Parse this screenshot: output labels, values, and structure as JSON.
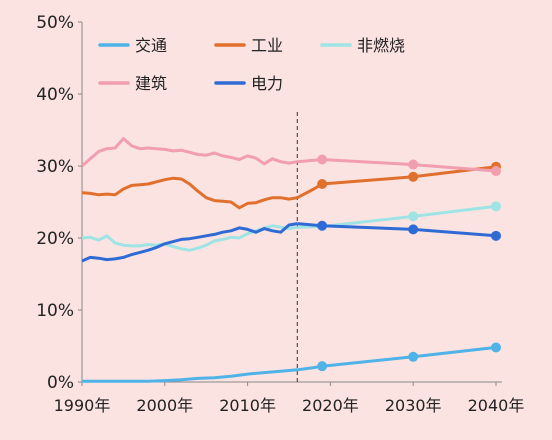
{
  "chart_data": {
    "type": "line",
    "title": "",
    "xlabel": "",
    "ylabel": "",
    "xlim": [
      1990,
      2040
    ],
    "ylim": [
      0,
      50
    ],
    "y_ticks": [
      0,
      10,
      20,
      30,
      40,
      50
    ],
    "y_tick_labels": [
      "0%",
      "10%",
      "20%",
      "30%",
      "40%",
      "50%"
    ],
    "x_ticks": [
      1990,
      2000,
      2010,
      2020,
      2030,
      2040
    ],
    "x_tick_labels": [
      "1990年",
      "2000年",
      "2010年",
      "2020年",
      "2030年",
      "2040年"
    ],
    "divider_x": 2016,
    "grid": false,
    "legend_position": "top",
    "series": [
      {
        "name": "交通",
        "color": "#4fb3e8",
        "history": [
          [
            1990,
            0.1
          ],
          [
            1992,
            0.1
          ],
          [
            1994,
            0.1
          ],
          [
            1996,
            0.1
          ],
          [
            1998,
            0.1
          ],
          [
            2000,
            0.2
          ],
          [
            2002,
            0.3
          ],
          [
            2004,
            0.5
          ],
          [
            2006,
            0.6
          ],
          [
            2008,
            0.8
          ],
          [
            2010,
            1.1
          ],
          [
            2012,
            1.3
          ],
          [
            2014,
            1.5
          ],
          [
            2016,
            1.7
          ]
        ],
        "projection": [
          [
            2016,
            1.7
          ],
          [
            2018,
            2.0
          ],
          [
            2019,
            2.2
          ],
          [
            2030,
            3.5
          ],
          [
            2040,
            4.8
          ]
        ],
        "markers": [
          [
            2019,
            2.2
          ],
          [
            2030,
            3.5
          ],
          [
            2040,
            4.8
          ]
        ]
      },
      {
        "name": "工业",
        "color": "#e0702c",
        "history": [
          [
            1990,
            26.3
          ],
          [
            1991,
            26.2
          ],
          [
            1992,
            26.0
          ],
          [
            1993,
            26.1
          ],
          [
            1994,
            26.0
          ],
          [
            1995,
            26.8
          ],
          [
            1996,
            27.3
          ],
          [
            1997,
            27.4
          ],
          [
            1998,
            27.5
          ],
          [
            1999,
            27.8
          ],
          [
            2000,
            28.1
          ],
          [
            2001,
            28.3
          ],
          [
            2002,
            28.2
          ],
          [
            2003,
            27.5
          ],
          [
            2004,
            26.5
          ],
          [
            2005,
            25.6
          ],
          [
            2006,
            25.2
          ],
          [
            2007,
            25.1
          ],
          [
            2008,
            25.0
          ],
          [
            2009,
            24.2
          ],
          [
            2010,
            24.8
          ],
          [
            2011,
            24.9
          ],
          [
            2012,
            25.3
          ],
          [
            2013,
            25.6
          ],
          [
            2014,
            25.6
          ],
          [
            2015,
            25.4
          ],
          [
            2016,
            25.6
          ]
        ],
        "projection": [
          [
            2016,
            25.6
          ],
          [
            2018,
            26.8
          ],
          [
            2019,
            27.5
          ],
          [
            2030,
            28.5
          ],
          [
            2040,
            29.9
          ]
        ],
        "markers": [
          [
            2019,
            27.5
          ],
          [
            2030,
            28.5
          ],
          [
            2040,
            29.9
          ]
        ]
      },
      {
        "name": "非燃烧",
        "color": "#9ee4e4",
        "history": [
          [
            1990,
            20.0
          ],
          [
            1991,
            20.1
          ],
          [
            1992,
            19.7
          ],
          [
            1993,
            20.3
          ],
          [
            1994,
            19.3
          ],
          [
            1995,
            19.0
          ],
          [
            1996,
            18.9
          ],
          [
            1997,
            18.9
          ],
          [
            1998,
            19.1
          ],
          [
            1999,
            19.0
          ],
          [
            2000,
            19.2
          ],
          [
            2001,
            18.8
          ],
          [
            2002,
            18.5
          ],
          [
            2003,
            18.3
          ],
          [
            2004,
            18.6
          ],
          [
            2005,
            19.0
          ],
          [
            2006,
            19.6
          ],
          [
            2007,
            19.8
          ],
          [
            2008,
            20.1
          ],
          [
            2009,
            20.0
          ],
          [
            2010,
            20.6
          ],
          [
            2011,
            21.0
          ],
          [
            2012,
            21.4
          ],
          [
            2013,
            21.7
          ],
          [
            2014,
            21.5
          ],
          [
            2015,
            21.3
          ],
          [
            2016,
            21.5
          ]
        ],
        "projection": [
          [
            2016,
            21.5
          ],
          [
            2019,
            21.6
          ],
          [
            2030,
            23.0
          ],
          [
            2040,
            24.4
          ]
        ],
        "markers": [
          [
            2030,
            23.0
          ],
          [
            2040,
            24.4
          ]
        ]
      },
      {
        "name": "建筑",
        "color": "#f19eaf",
        "history": [
          [
            1990,
            30.0
          ],
          [
            1991,
            31.0
          ],
          [
            1992,
            32.0
          ],
          [
            1993,
            32.4
          ],
          [
            1994,
            32.5
          ],
          [
            1995,
            33.8
          ],
          [
            1996,
            32.8
          ],
          [
            1997,
            32.4
          ],
          [
            1998,
            32.5
          ],
          [
            1999,
            32.4
          ],
          [
            2000,
            32.3
          ],
          [
            2001,
            32.1
          ],
          [
            2002,
            32.2
          ],
          [
            2003,
            31.9
          ],
          [
            2004,
            31.6
          ],
          [
            2005,
            31.5
          ],
          [
            2006,
            31.8
          ],
          [
            2007,
            31.4
          ],
          [
            2008,
            31.2
          ],
          [
            2009,
            30.9
          ],
          [
            2010,
            31.4
          ],
          [
            2011,
            31.1
          ],
          [
            2012,
            30.3
          ],
          [
            2013,
            31.0
          ],
          [
            2014,
            30.6
          ],
          [
            2015,
            30.4
          ],
          [
            2016,
            30.6
          ]
        ],
        "projection": [
          [
            2016,
            30.6
          ],
          [
            2019,
            30.9
          ],
          [
            2030,
            30.2
          ],
          [
            2040,
            29.3
          ]
        ],
        "markers": [
          [
            2019,
            30.9
          ],
          [
            2030,
            30.2
          ],
          [
            2040,
            29.3
          ]
        ]
      },
      {
        "name": "电力",
        "color": "#2f6bd4",
        "history": [
          [
            1990,
            16.8
          ],
          [
            1991,
            17.3
          ],
          [
            1992,
            17.2
          ],
          [
            1993,
            17.0
          ],
          [
            1994,
            17.1
          ],
          [
            1995,
            17.3
          ],
          [
            1996,
            17.7
          ],
          [
            1997,
            18.0
          ],
          [
            1998,
            18.3
          ],
          [
            1999,
            18.7
          ],
          [
            2000,
            19.2
          ],
          [
            2001,
            19.5
          ],
          [
            2002,
            19.8
          ],
          [
            2003,
            19.9
          ],
          [
            2004,
            20.1
          ],
          [
            2005,
            20.3
          ],
          [
            2006,
            20.5
          ],
          [
            2007,
            20.8
          ],
          [
            2008,
            21.0
          ],
          [
            2009,
            21.4
          ],
          [
            2010,
            21.2
          ],
          [
            2011,
            20.8
          ],
          [
            2012,
            21.3
          ],
          [
            2013,
            21.0
          ],
          [
            2014,
            20.8
          ],
          [
            2015,
            21.8
          ],
          [
            2016,
            22.0
          ]
        ],
        "projection": [
          [
            2016,
            22.0
          ],
          [
            2019,
            21.7
          ],
          [
            2030,
            21.2
          ],
          [
            2040,
            20.3
          ]
        ],
        "markers": [
          [
            2019,
            21.7
          ],
          [
            2030,
            21.2
          ],
          [
            2040,
            20.3
          ]
        ]
      }
    ]
  }
}
